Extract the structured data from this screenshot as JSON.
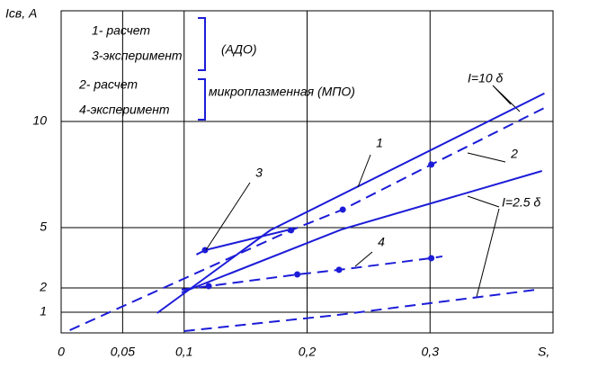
{
  "chart_data": {
    "type": "line",
    "y_label": "Icв, A",
    "x_label": "S,",
    "xlim": [
      0,
      0.4
    ],
    "ylim": [
      0,
      15
    ],
    "xticks": [
      0,
      {
        "value": 0.05,
        "label": "0,05"
      },
      {
        "value": 0.1,
        "label": "0,1"
      },
      {
        "value": 0.2,
        "label": "0,2"
      },
      {
        "value": 0.3,
        "label": "0,3"
      }
    ],
    "yticks": [
      1,
      2,
      5,
      10
    ],
    "grid": true,
    "legend_box": [
      {
        "items": [
          "1- расчет",
          "3-эксперимент"
        ],
        "label": "(АДО)"
      },
      {
        "items": [
          "2- расчет",
          "4-эксперимент"
        ],
        "label": "микроплазменная (МПО)"
      }
    ],
    "annotations": [
      "I=10 δ",
      "I=2.5 δ"
    ],
    "series": [
      {
        "name": "1",
        "color": "#1c1cd8",
        "dash": false,
        "x": [
          0.078,
          0.17,
          0.393
        ],
        "values": [
          0.96,
          4.87,
          11.27
        ],
        "markers": [
          false,
          false,
          false
        ]
      },
      {
        "color": "#1c1cd8",
        "dash": true,
        "x": [
          0.007,
          0.187,
          0.229,
          0.301,
          0.394
        ],
        "values": [
          0.2,
          4.87,
          5.85,
          7.97,
          10.64
        ],
        "markers": [
          false,
          true,
          true,
          true,
          false
        ]
      },
      {
        "name": "2",
        "color": "#1c1cd8",
        "dash": false,
        "x": [
          0.098,
          0.228,
          0.391
        ],
        "values": [
          1.81,
          4.91,
          7.67
        ],
        "markers": [
          false,
          false,
          false
        ]
      },
      {
        "name": "3",
        "color": "#1c1cd8",
        "dash": false,
        "x": [
          0.11,
          0.117,
          0.187
        ],
        "values": [
          3.66,
          3.88,
          4.92
        ],
        "markers": [
          false,
          true,
          false
        ]
      },
      {
        "name": "4",
        "color": "#1c1cd8",
        "dash": true,
        "x": [
          0.098,
          0.12,
          0.192,
          0.226,
          0.301,
          0.31
        ],
        "values": [
          1.93,
          2.09,
          2.67,
          2.9,
          3.48,
          3.57
        ],
        "markers": [
          false,
          true,
          true,
          true,
          true,
          false
        ]
      },
      {
        "color": "#1c1cd8",
        "dash": true,
        "x": [
          0.1,
          0.225,
          0.387
        ],
        "values": [
          0.16,
          0.88,
          1.93
        ],
        "markers": [
          false,
          false,
          false
        ]
      }
    ]
  }
}
